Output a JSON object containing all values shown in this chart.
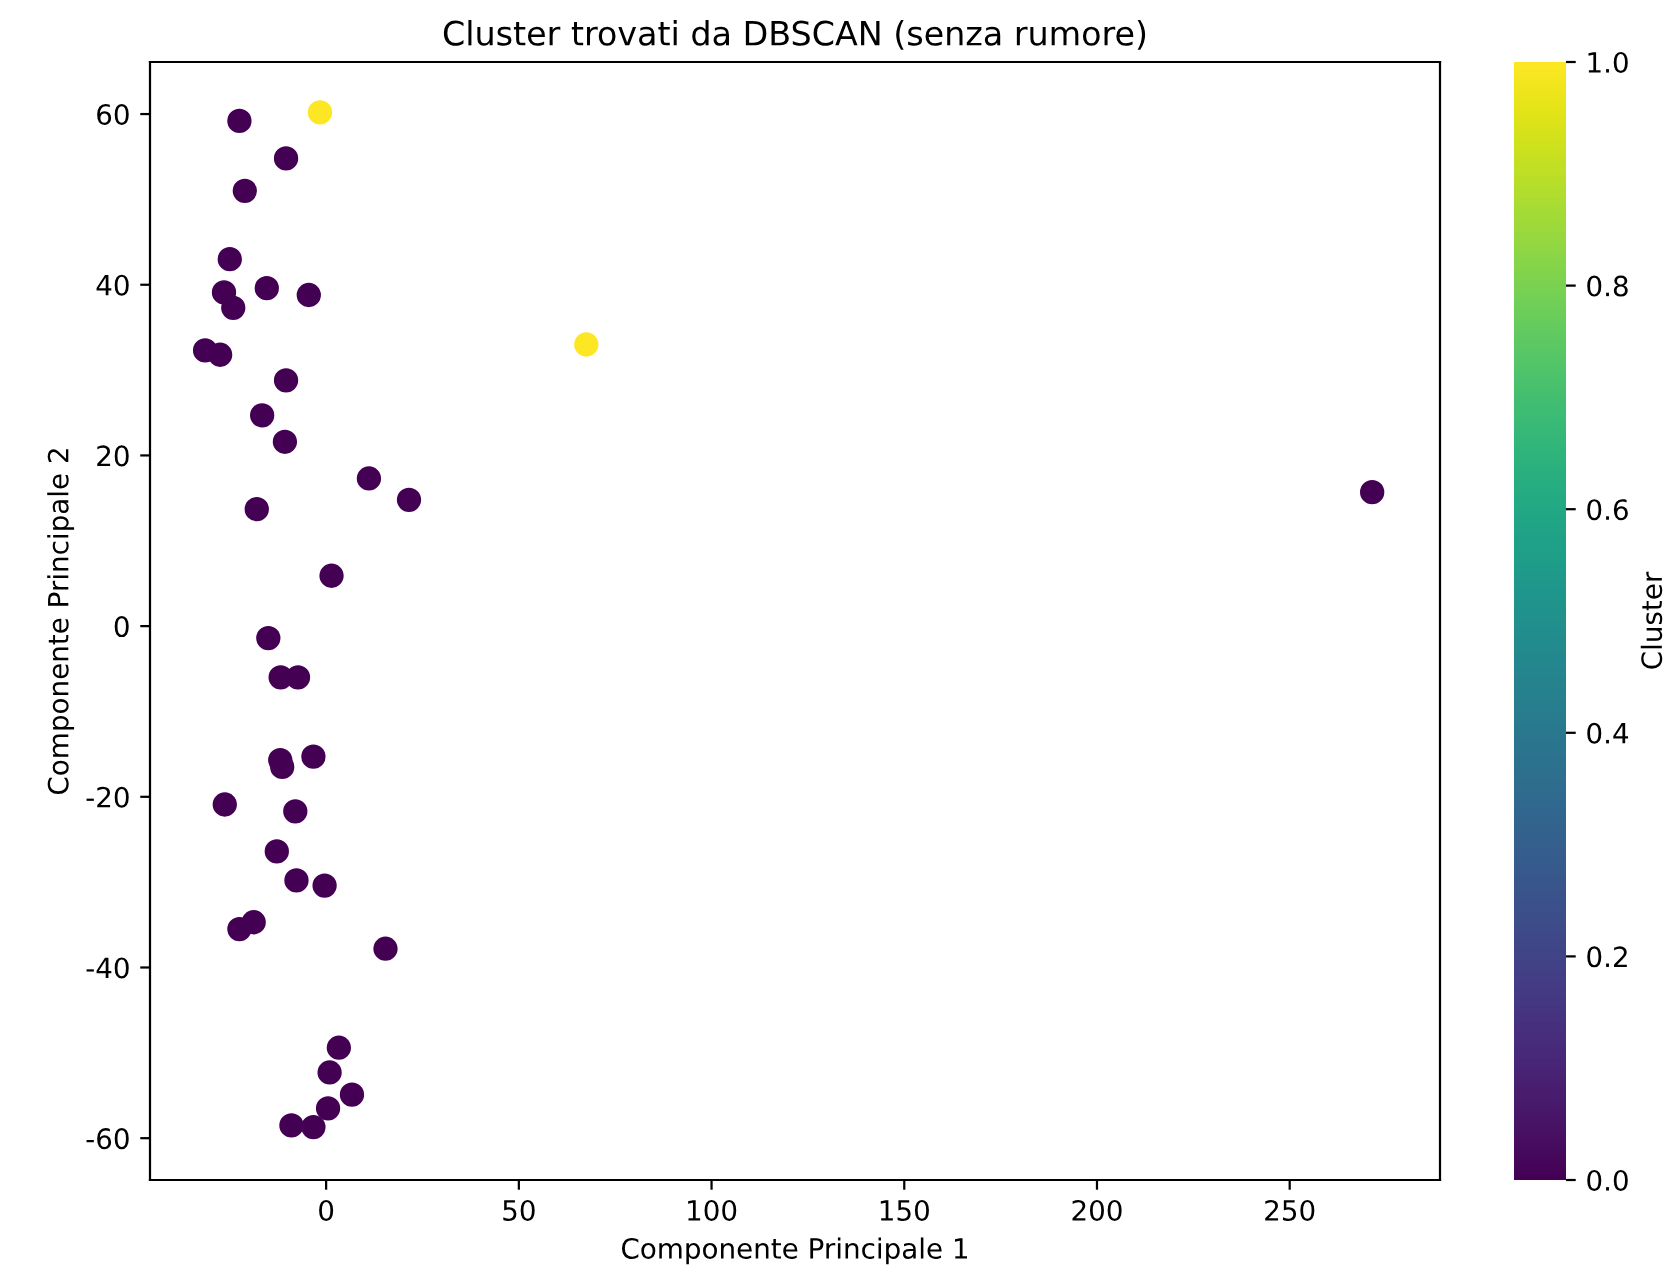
{
  "chart_data": {
    "type": "scatter",
    "title": "Cluster trovati da DBSCAN (senza rumore)",
    "xlabel": "Componente Principale 1",
    "ylabel": "Componente Principale 2",
    "clabel": "Cluster",
    "x": [
      -1.6,
      67.5,
      271.4,
      -22.5,
      -10.4,
      -21.1,
      -25.0,
      -26.5,
      -15.4,
      -4.5,
      -24.1,
      -31.4,
      -27.5,
      -10.4,
      -16.6,
      -10.7,
      11.1,
      21.5,
      -18.0,
      1.4,
      -15.0,
      -11.8,
      -7.3,
      -11.9,
      -11.4,
      -3.3,
      -26.3,
      -8.0,
      -12.8,
      -7.7,
      -0.4,
      -22.5,
      -18.8,
      15.4,
      3.3,
      0.9,
      6.7,
      0.5,
      -9.0,
      -3.3
    ],
    "values": [
      60.2,
      33.0,
      15.7,
      59.2,
      54.8,
      51.0,
      43.0,
      39.1,
      39.6,
      38.8,
      37.3,
      32.3,
      31.8,
      28.8,
      24.7,
      21.6,
      17.3,
      14.8,
      13.7,
      5.9,
      -1.4,
      -6.0,
      -6.0,
      -15.7,
      -16.5,
      -15.3,
      -20.9,
      -21.7,
      -26.4,
      -29.8,
      -30.4,
      -35.5,
      -34.7,
      -37.8,
      -49.4,
      -52.3,
      -54.9,
      -56.5,
      -58.5,
      -58.7
    ],
    "cvalues": [
      1,
      1,
      0,
      0,
      0,
      0,
      0,
      0,
      0,
      0,
      0,
      0,
      0,
      0,
      0,
      0,
      0,
      0,
      0,
      0,
      0,
      0,
      0,
      0,
      0,
      0,
      0,
      0,
      0,
      0,
      0,
      0,
      0,
      0,
      0,
      0,
      0,
      0,
      0,
      0
    ],
    "xlim": [
      -45.7,
      289
    ],
    "ylim": [
      -64.9,
      66.1
    ],
    "xticks": [
      0,
      50,
      100,
      150,
      200,
      250
    ],
    "yticks": [
      -60,
      -40,
      -20,
      0,
      20,
      40,
      60
    ],
    "clim": [
      0,
      1
    ],
    "cticks": [
      {
        "value": 0,
        "label": "0.0"
      },
      0.2,
      0.4,
      0.6,
      0.8,
      {
        "value": 1,
        "label": "1.0"
      }
    ],
    "marker": "circle",
    "grid": false,
    "legend": false
  }
}
